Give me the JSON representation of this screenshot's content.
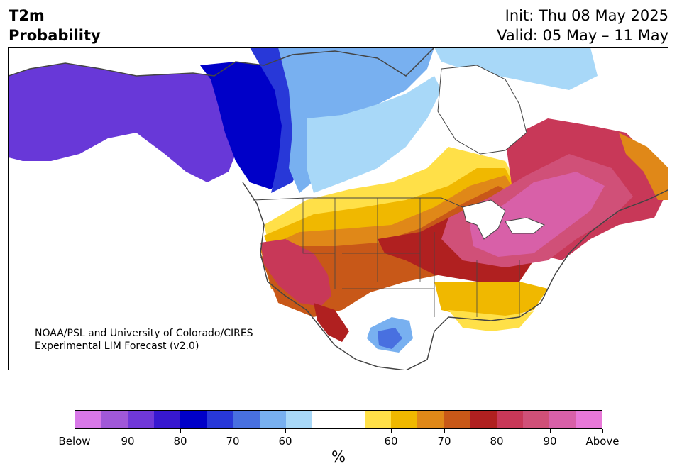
{
  "header": {
    "title_line1": "T2m",
    "title_line2": "Probability",
    "init_text": "Init: Thu 08 May 2025",
    "valid_text": "Valid: 05 May – 11 May"
  },
  "credit": {
    "line1": "NOAA/PSL and University of Colorado/CIRES",
    "line2": "Experimental LIM Forecast (v2.0)"
  },
  "colorbar": {
    "colors": [
      "#d878e8",
      "#a058d8",
      "#7038d8",
      "#3818d0",
      "#0000c8",
      "#2838d8",
      "#4870e0",
      "#78b0f0",
      "#a8d8f8",
      "#ffffff",
      "#ffffff",
      "#ffe048",
      "#f0b800",
      "#e08818",
      "#c85818",
      "#b02020",
      "#c83858",
      "#d05078",
      "#d860a8",
      "#e878d8"
    ],
    "tick_labels": [
      "Below",
      "90",
      "80",
      "70",
      "60",
      "60",
      "70",
      "80",
      "90",
      "Above"
    ],
    "units": "%"
  },
  "map_colors": {
    "alaska": "#6838d8",
    "deep_blue": "#0000c8",
    "mid_blue": "#2838d8",
    "blue": "#4870e0",
    "light_blue": "#78b0f0",
    "pale_blue": "#a8d8f8",
    "yellow": "#ffe048",
    "gold": "#f0b800",
    "orange": "#e08818",
    "dark_orange": "#c85818",
    "red": "#b02020",
    "crimson": "#c83858",
    "rose": "#d05078",
    "pink": "#d860a8",
    "lake": "#ffffff",
    "border": "#444444"
  }
}
